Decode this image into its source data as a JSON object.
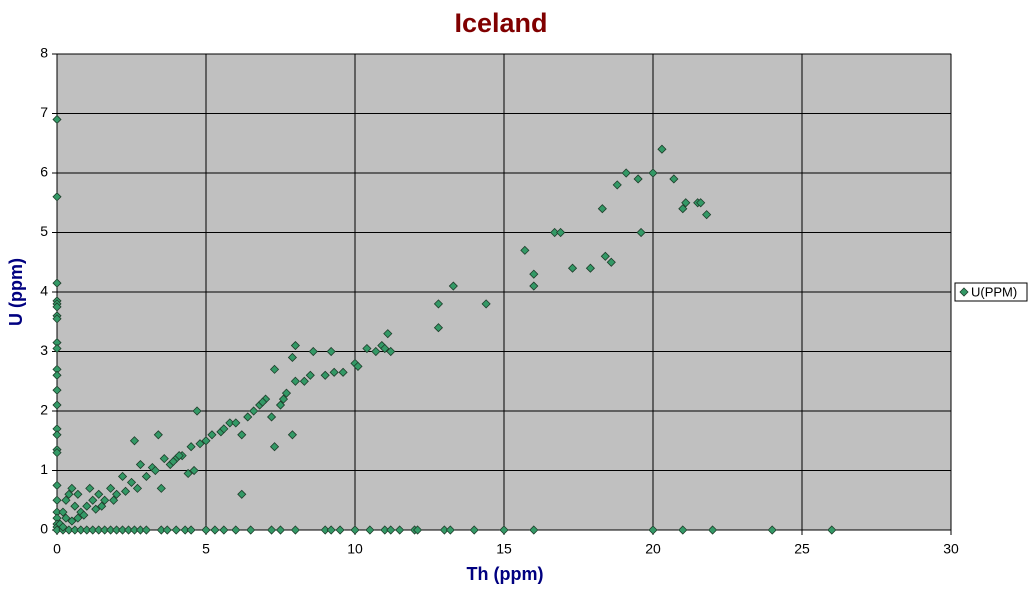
{
  "chart_data": {
    "type": "scatter",
    "title": "Iceland",
    "x_label": "Th (ppm)",
    "y_label": "U (ppm)",
    "xlim": [
      0,
      30
    ],
    "xticks": [
      0,
      5,
      10,
      15,
      20,
      25,
      30
    ],
    "ylim": [
      0,
      8
    ],
    "yticks": [
      0,
      1,
      2,
      3,
      4,
      5,
      6,
      7,
      8
    ],
    "grid": true,
    "legend": "right",
    "x": [
      0,
      0,
      0,
      0,
      0,
      0,
      0,
      0,
      0,
      0,
      0,
      0,
      0,
      0,
      0,
      0,
      0,
      0,
      0,
      0,
      0,
      0,
      0,
      0,
      0,
      0.2,
      0.4,
      0.6,
      0.8,
      1,
      1.2,
      1.4,
      1.6,
      1.8,
      2,
      2.2,
      2.4,
      2.6,
      2.8,
      3,
      3.5,
      3.7,
      4,
      4.3,
      4.5,
      5,
      5.3,
      5.6,
      6,
      6.5,
      7.2,
      7.5,
      8,
      9,
      9.2,
      9.5,
      10,
      10.5,
      11,
      11.2,
      11.5,
      12,
      12.1,
      13,
      13.2,
      14,
      15,
      16,
      20,
      21,
      22,
      24,
      26,
      0.1,
      0.2,
      0.3,
      0.4,
      0.5,
      0.6,
      0.7,
      0.8,
      1,
      1.2,
      1.1,
      1.4,
      1.6,
      1.8,
      2,
      2.2,
      2.5,
      2.6,
      2.8,
      3,
      3.2,
      3.4,
      3.5,
      3.6,
      3.8,
      4,
      4.2,
      4.4,
      4.5,
      4.6,
      4.7,
      4.8,
      5,
      5.2,
      5.5,
      5.8,
      6,
      6.2,
      6.2,
      6.4,
      6.6,
      6.8,
      7,
      7.2,
      7.3,
      7.3,
      7.5,
      7.7,
      7.9,
      8,
      8,
      7.9,
      8.3,
      8.5,
      8.6,
      9,
      9.2,
      9.3,
      9.6,
      10,
      10.1,
      10.4,
      10.7,
      10.9,
      11,
      11.1,
      11.2,
      12.8,
      12.8,
      13.3,
      14.4,
      15.7,
      16,
      16,
      16.7,
      16.9,
      17.3,
      17.9,
      18.3,
      18.4,
      18.6,
      18.8,
      19.1,
      19.5,
      19.6,
      20,
      20.3,
      20.7,
      21,
      21.1,
      21.5,
      21.6,
      21.8,
      0.2,
      0.3,
      0.5,
      0.7,
      0.9,
      1.3,
      1.5,
      1.9,
      2.3,
      2.7,
      3.3,
      3.9,
      4.1,
      5.6,
      6.9,
      7.6
    ],
    "series": [
      {
        "name": "U(PPM)",
        "color": "#339966",
        "values": [
          6.9,
          5.6,
          4.15,
          3.85,
          3.8,
          3.75,
          3.6,
          3.55,
          3.15,
          3.05,
          2.7,
          2.6,
          2.35,
          2.1,
          1.7,
          1.6,
          1.35,
          1.3,
          0.75,
          0.5,
          0.3,
          0.2,
          0.1,
          0.05,
          0,
          0,
          0,
          0,
          0,
          0,
          0,
          0,
          0,
          0,
          0,
          0,
          0,
          0,
          0,
          0,
          0,
          0,
          0,
          0,
          0,
          0,
          0,
          0,
          0,
          0,
          0,
          0,
          0,
          0,
          0,
          0,
          0,
          0,
          0,
          0,
          0,
          0,
          0,
          0,
          0,
          0,
          0,
          0,
          0,
          0,
          0,
          0,
          0,
          0.1,
          0.3,
          0.5,
          0.6,
          0.7,
          0.4,
          0.6,
          0.3,
          0.4,
          0.5,
          0.7,
          0.6,
          0.5,
          0.7,
          0.6,
          0.9,
          0.8,
          1.5,
          1.1,
          0.9,
          1.05,
          1.6,
          0.7,
          1.2,
          1.1,
          1.2,
          1.25,
          0.95,
          1.4,
          1,
          2,
          1.45,
          1.5,
          1.6,
          1.65,
          1.8,
          1.8,
          1.6,
          0.6,
          1.9,
          2,
          2.1,
          2.2,
          1.9,
          2.7,
          1.4,
          2.1,
          2.3,
          1.6,
          2.5,
          3.1,
          2.9,
          2.5,
          2.6,
          3,
          2.6,
          3,
          2.65,
          2.65,
          2.8,
          2.75,
          3.05,
          3,
          3.1,
          3.05,
          3.3,
          3,
          3.4,
          3.8,
          4.1,
          3.8,
          4.7,
          4.3,
          4.1,
          5,
          5,
          4.4,
          4.4,
          5.4,
          4.6,
          4.5,
          5.8,
          6,
          5.9,
          5,
          6,
          6.4,
          5.9,
          5.4,
          5.5,
          5.5,
          5.5,
          5.3,
          0.05,
          0.2,
          0.15,
          0.2,
          0.25,
          0.35,
          0.4,
          0.5,
          0.65,
          0.7,
          1,
          1.15,
          1.25,
          1.7,
          2.15,
          2.2
        ]
      }
    ]
  }
}
